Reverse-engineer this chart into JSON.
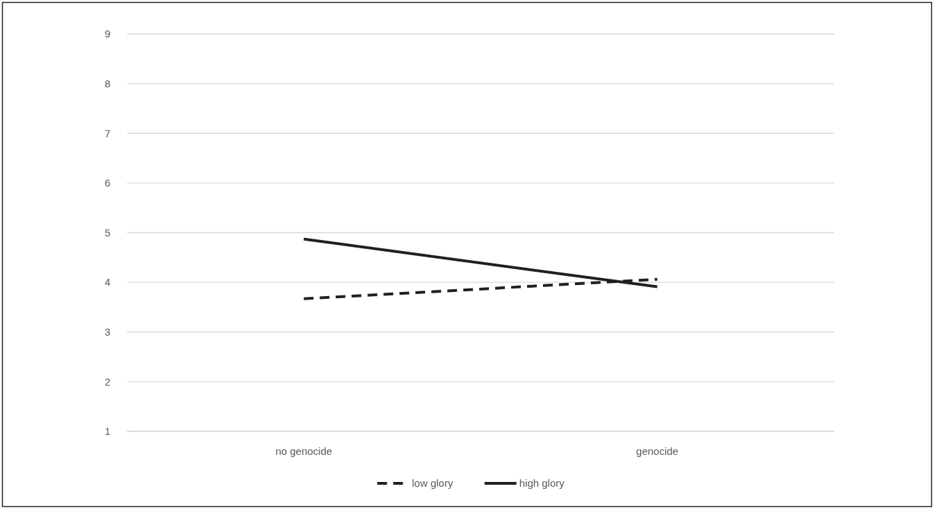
{
  "chart_data": {
    "type": "line",
    "categories": [
      "no genocide",
      "genocide"
    ],
    "series": [
      {
        "name": "low glory",
        "color": "#231f20",
        "line_style": "dashed",
        "values": [
          3.67,
          4.06
        ]
      },
      {
        "name": "high glory",
        "color": "#231f20",
        "line_style": "solid",
        "values": [
          4.87,
          3.91
        ]
      }
    ],
    "ylim": [
      1,
      9
    ],
    "yticks": [
      1,
      2,
      3,
      4,
      5,
      6,
      7,
      8,
      9
    ],
    "grid": "y",
    "legend": "bottom",
    "marker": "none"
  }
}
